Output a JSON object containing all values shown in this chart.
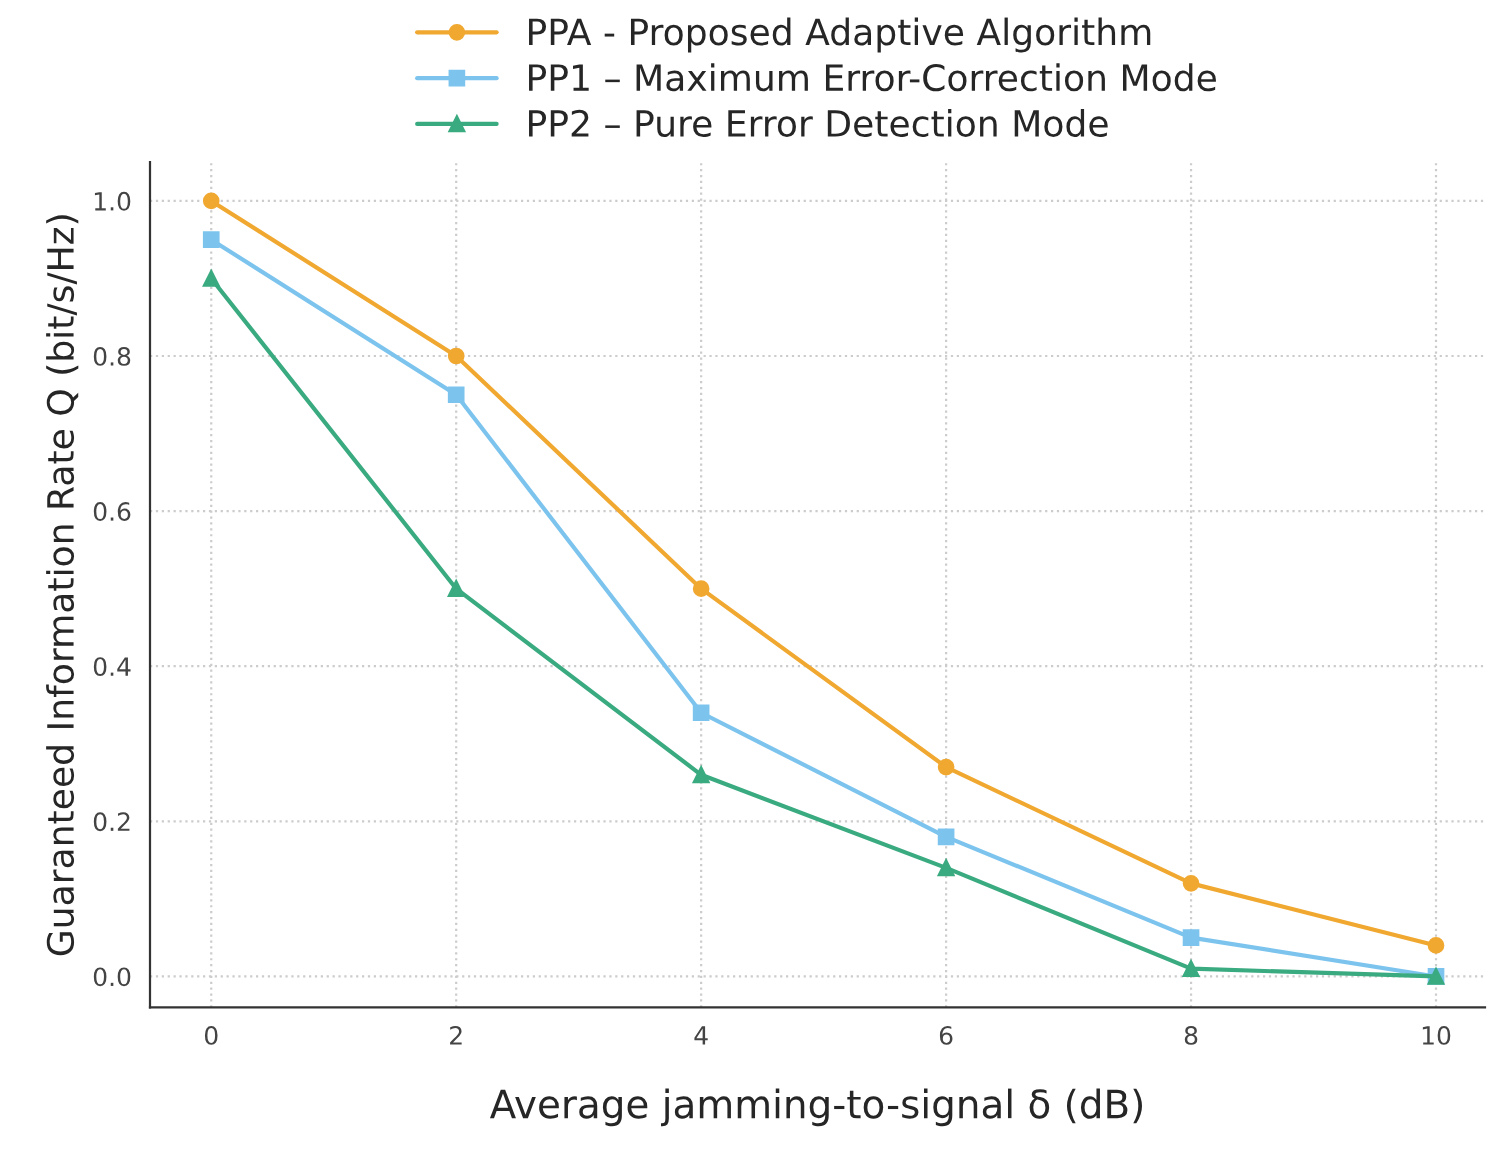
{
  "chart_data": {
    "type": "line",
    "xlabel": "Average jamming-to-signal δ (dB)",
    "ylabel": "Guaranteed Information Rate Q (bit/s/Hz)",
    "x": [
      0,
      2,
      4,
      6,
      8,
      10
    ],
    "series": [
      {
        "name": "PPA - Proposed Adaptive Algorithm",
        "color": "#f0a830",
        "marker": "circle",
        "values": [
          1.0,
          0.8,
          0.5,
          0.27,
          0.12,
          0.04
        ]
      },
      {
        "name": "PP1 – Maximum Error-Correction Mode",
        "color": "#7cc4ee",
        "marker": "square",
        "values": [
          0.95,
          0.75,
          0.34,
          0.18,
          0.05,
          0.0
        ]
      },
      {
        "name": "PP2 – Pure Error Detection Mode",
        "color": "#3aaa80",
        "marker": "triangle",
        "values": [
          0.9,
          0.5,
          0.26,
          0.14,
          0.01,
          0.0
        ]
      }
    ],
    "xlim": [
      -0.5,
      10.4
    ],
    "xticks": [
      0,
      2,
      4,
      6,
      8,
      10
    ],
    "ylim": [
      -0.04,
      1.05
    ],
    "yticks": [
      {
        "value": 0,
        "label": "0.0"
      },
      {
        "value": 0.2,
        "label": "0.2"
      },
      {
        "value": 0.4,
        "label": "0.4"
      },
      {
        "value": 0.6,
        "label": "0.6"
      },
      {
        "value": 0.8,
        "label": "0.8"
      },
      {
        "value": 1.0,
        "label": "1.0"
      }
    ],
    "grid": true,
    "legend": "top",
    "line_style": "solid"
  }
}
